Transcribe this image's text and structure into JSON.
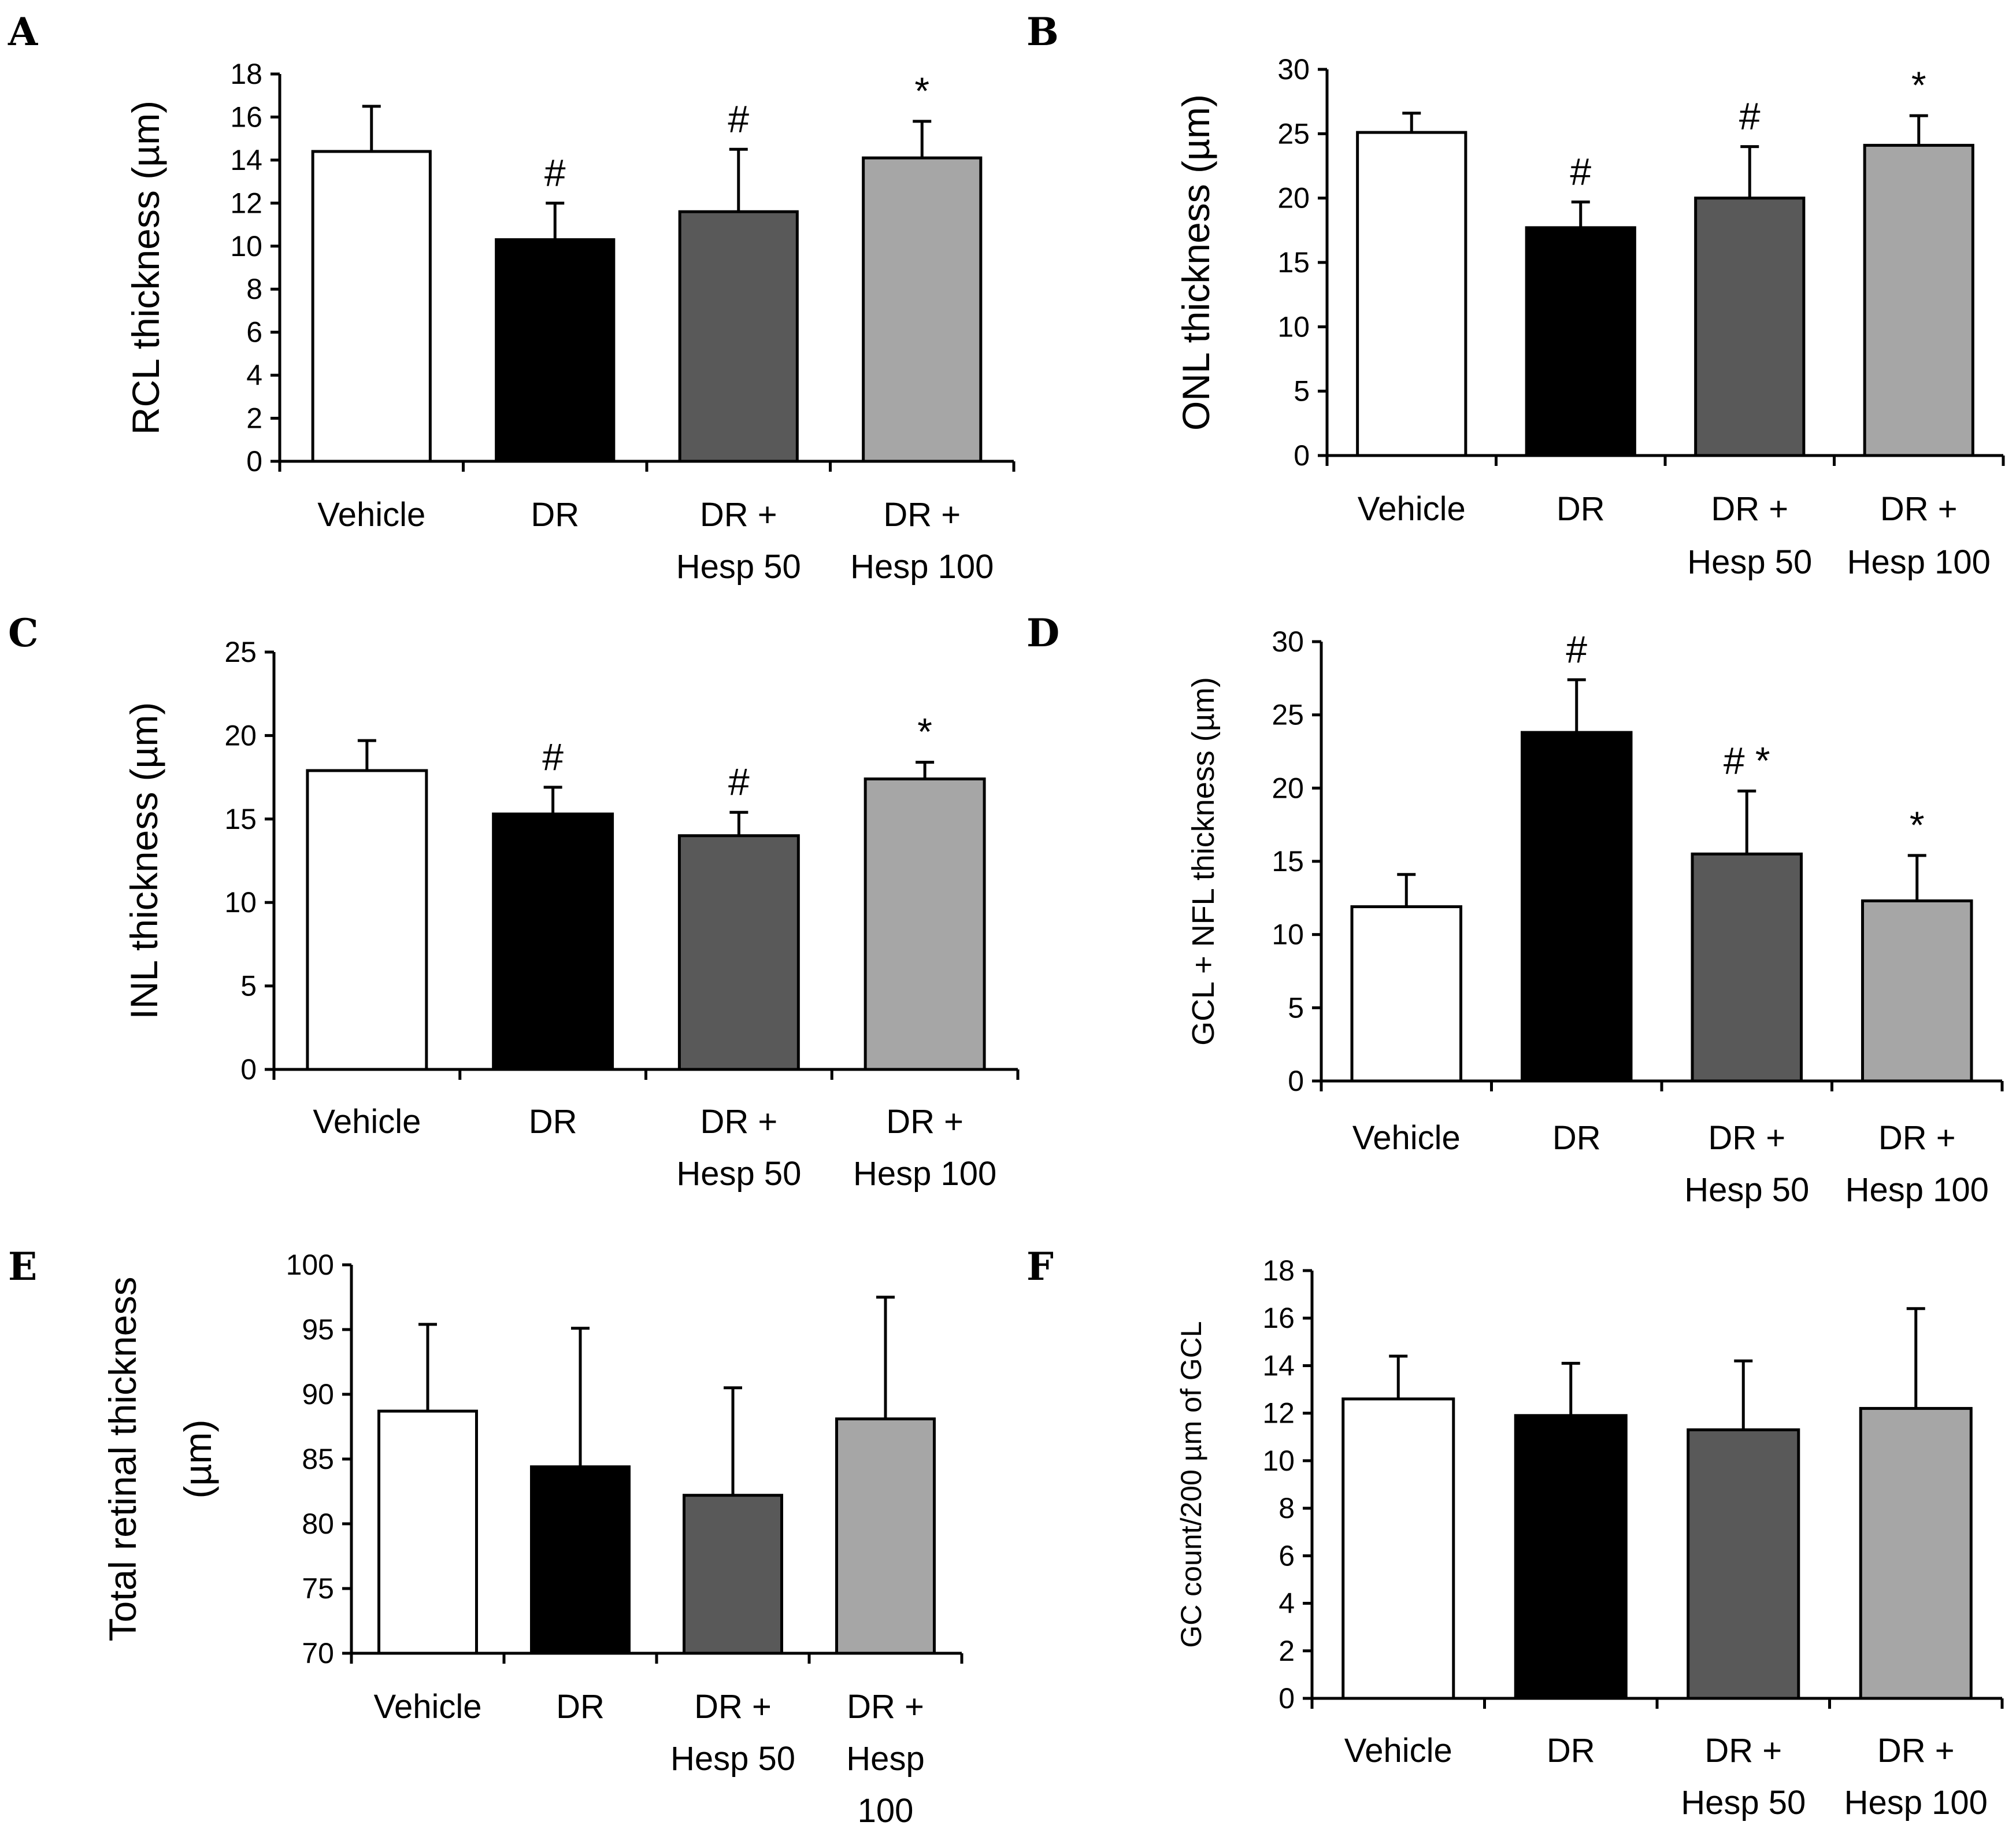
{
  "chart_data": [
    {
      "panel": "A",
      "type": "bar",
      "categories": [
        "Vehicle",
        "DR",
        "DR + Hesp 50",
        "DR + Hesp 100"
      ],
      "category_lines": [
        [
          "Vehicle"
        ],
        [
          "DR"
        ],
        [
          "DR +",
          "Hesp 50"
        ],
        [
          "DR +",
          "Hesp 100"
        ]
      ],
      "values": [
        14.4,
        10.3,
        11.6,
        14.1
      ],
      "errors": [
        2.1,
        1.7,
        2.9,
        1.7
      ],
      "markers": [
        "",
        "#",
        "#",
        "*"
      ],
      "ylabel": "RCL thickness (µm)",
      "ylim": [
        0,
        18
      ],
      "yticks": [
        0,
        2,
        4,
        6,
        8,
        10,
        12,
        14,
        16,
        18
      ],
      "colors": [
        "#ffffff",
        "#000000",
        "#595959",
        "#a6a6a6"
      ]
    },
    {
      "panel": "B",
      "type": "bar",
      "categories": [
        "Vehicle",
        "DR",
        "DR + Hesp 50",
        "DR + Hesp 100"
      ],
      "category_lines": [
        [
          "Vehicle"
        ],
        [
          "DR"
        ],
        [
          "DR +",
          "Hesp 50"
        ],
        [
          "DR +",
          "Hesp 100"
        ]
      ],
      "values": [
        25.1,
        17.7,
        20.0,
        24.1
      ],
      "errors": [
        1.5,
        2.0,
        4.0,
        2.3
      ],
      "markers": [
        "",
        "#",
        "#",
        "*"
      ],
      "ylabel": "ONL thickness (µm)",
      "ylim": [
        0,
        30
      ],
      "yticks": [
        0,
        5,
        10,
        15,
        20,
        25,
        30
      ],
      "colors": [
        "#ffffff",
        "#000000",
        "#595959",
        "#a6a6a6"
      ]
    },
    {
      "panel": "C",
      "type": "bar",
      "categories": [
        "Vehicle",
        "DR",
        "DR + Hesp 50",
        "DR + Hesp 100"
      ],
      "category_lines": [
        [
          "Vehicle"
        ],
        [
          "DR"
        ],
        [
          "DR +",
          "Hesp 50"
        ],
        [
          "DR +",
          "Hesp 100"
        ]
      ],
      "values": [
        17.9,
        15.3,
        14.0,
        17.4
      ],
      "errors": [
        1.8,
        1.6,
        1.4,
        1.0
      ],
      "markers": [
        "",
        "#",
        "#",
        "*"
      ],
      "ylabel": "INL  thickness (µm)",
      "ylim": [
        0,
        25
      ],
      "yticks": [
        0,
        5,
        10,
        15,
        20,
        25
      ],
      "colors": [
        "#ffffff",
        "#000000",
        "#595959",
        "#a6a6a6"
      ]
    },
    {
      "panel": "D",
      "type": "bar",
      "categories": [
        "Vehicle",
        "DR",
        "DR + Hesp 50",
        "DR + Hesp 100"
      ],
      "category_lines": [
        [
          "Vehicle"
        ],
        [
          "DR"
        ],
        [
          "DR +",
          "Hesp 50"
        ],
        [
          "DR +",
          "Hesp 100"
        ]
      ],
      "values": [
        11.9,
        23.8,
        15.5,
        12.3
      ],
      "errors": [
        2.2,
        3.6,
        4.3,
        3.1
      ],
      "markers": [
        "",
        "#",
        "# *",
        "*"
      ],
      "ylabel": "GCL + NFL thickness (µm)",
      "ylim": [
        0,
        30
      ],
      "yticks": [
        0,
        5,
        10,
        15,
        20,
        25,
        30
      ],
      "colors": [
        "#ffffff",
        "#000000",
        "#595959",
        "#a6a6a6"
      ]
    },
    {
      "panel": "E",
      "type": "bar",
      "categories": [
        "Vehicle",
        "DR",
        "DR + Hesp 50",
        "DR + Hesp 100"
      ],
      "category_lines": [
        [
          "Vehicle"
        ],
        [
          "DR"
        ],
        [
          "DR +",
          "Hesp 50"
        ],
        [
          "DR +",
          "Hesp",
          "100"
        ]
      ],
      "values": [
        88.7,
        84.4,
        82.2,
        88.1
      ],
      "errors": [
        6.7,
        10.7,
        8.3,
        9.4
      ],
      "markers": [
        "",
        "",
        "",
        ""
      ],
      "ylabel_lines": [
        "Total retinal thickness",
        "(µm)"
      ],
      "ylim": [
        70,
        100
      ],
      "yticks": [
        70,
        75,
        80,
        85,
        90,
        95,
        100
      ],
      "colors": [
        "#ffffff",
        "#000000",
        "#595959",
        "#a6a6a6"
      ]
    },
    {
      "panel": "F",
      "type": "bar",
      "categories": [
        "Vehicle",
        "DR",
        "DR + Hesp 50",
        "DR + Hesp 100"
      ],
      "category_lines": [
        [
          "Vehicle"
        ],
        [
          "DR"
        ],
        [
          "DR +",
          "Hesp 50"
        ],
        [
          "DR +",
          "Hesp 100"
        ]
      ],
      "values": [
        12.6,
        11.9,
        11.3,
        12.2
      ],
      "errors": [
        1.8,
        2.2,
        2.9,
        4.2
      ],
      "markers": [
        "",
        "",
        "",
        ""
      ],
      "ylabel": "GC count/200 µm of GCL",
      "ylim": [
        0,
        18
      ],
      "yticks": [
        0,
        2,
        4,
        6,
        8,
        10,
        12,
        14,
        16,
        18
      ],
      "colors": [
        "#ffffff",
        "#000000",
        "#595959",
        "#a6a6a6"
      ]
    }
  ]
}
